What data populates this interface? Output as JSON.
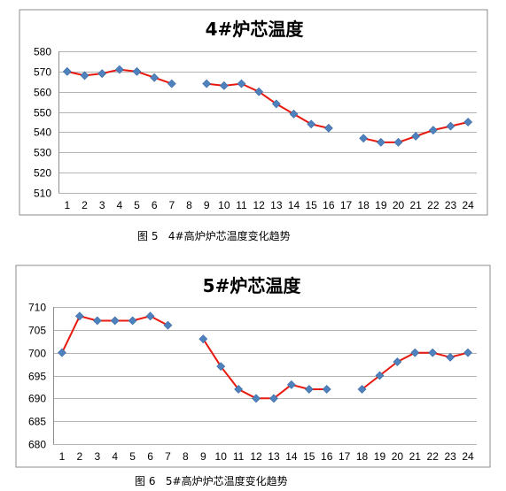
{
  "colors": {
    "line": "#e8190f",
    "marker": "#4f81bd",
    "grid": "#b3b3b3",
    "frame": "#8c8c8c"
  },
  "captions": [
    "图 5   4#高炉炉芯温度变化趋势",
    "图 6   5#高炉炉芯温度变化趋势"
  ],
  "chart_data": [
    {
      "type": "line",
      "title": "4#炉芯温度",
      "x": [
        1,
        2,
        3,
        4,
        5,
        6,
        7,
        8,
        9,
        10,
        11,
        12,
        13,
        14,
        15,
        16,
        17,
        18,
        19,
        20,
        21,
        22,
        23,
        24
      ],
      "x_tick_labels": [
        "1",
        "2",
        "3",
        "4",
        "5",
        "6",
        "7",
        "8",
        "9",
        "10",
        "11",
        "12",
        "13",
        "14",
        "15",
        "16",
        "17",
        "18",
        "19",
        "20",
        "21",
        "22",
        "23",
        "24"
      ],
      "values": [
        570,
        568,
        569,
        571,
        570,
        567,
        564,
        null,
        564,
        563,
        564,
        560,
        554,
        549,
        544,
        542,
        null,
        537,
        535,
        535,
        538,
        541,
        543,
        545
      ],
      "ylim": [
        510,
        580
      ],
      "y_ticks": [
        510,
        520,
        530,
        540,
        550,
        560,
        570,
        580
      ],
      "grid": true,
      "legend": "none"
    },
    {
      "type": "line",
      "title": "5#炉芯温度",
      "x": [
        1,
        2,
        3,
        4,
        5,
        6,
        7,
        8,
        9,
        10,
        11,
        12,
        13,
        14,
        15,
        16,
        17,
        18,
        19,
        20,
        21,
        22,
        23,
        24
      ],
      "x_tick_labels": [
        "1",
        "2",
        "3",
        "4",
        "5",
        "6",
        "7",
        "8",
        "9",
        "10",
        "11",
        "12",
        "13",
        "14",
        "15",
        "16",
        "17",
        "18",
        "19",
        "20",
        "21",
        "22",
        "23",
        "24"
      ],
      "values": [
        700,
        708,
        707,
        707,
        707,
        708,
        706,
        null,
        703,
        697,
        692,
        690,
        690,
        693,
        692,
        692,
        null,
        692,
        695,
        698,
        700,
        700,
        699,
        700
      ],
      "ylim": [
        680,
        710
      ],
      "y_ticks": [
        680,
        685,
        690,
        695,
        700,
        705,
        710
      ],
      "grid": true,
      "legend": "none"
    }
  ]
}
